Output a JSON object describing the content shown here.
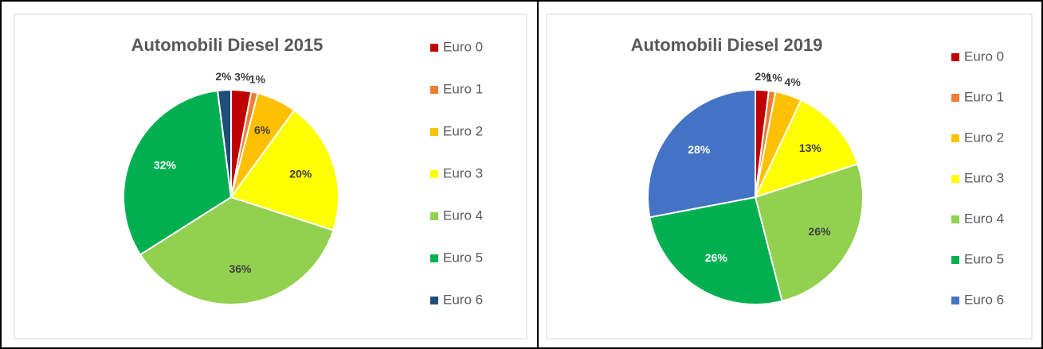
{
  "chart_data": [
    {
      "type": "pie",
      "title": "Automobili Diesel 2015",
      "categories": [
        "Euro 0",
        "Euro 1",
        "Euro 2",
        "Euro 3",
        "Euro 4",
        "Euro 5",
        "Euro 6"
      ],
      "values": [
        3,
        1,
        6,
        20,
        36,
        32,
        2
      ],
      "value_labels": [
        "3%",
        "1%",
        "6%",
        "20%",
        "36%",
        "32%",
        "2%"
      ],
      "colors": [
        "#c00000",
        "#ed7d31",
        "#ffc000",
        "#ffff00",
        "#92d050",
        "#00b050",
        "#1f4e79"
      ],
      "legend": "right"
    },
    {
      "type": "pie",
      "title": "Automobili Diesel 2019",
      "categories": [
        "Euro 0",
        "Euro 1",
        "Euro 2",
        "Euro 3",
        "Euro 4",
        "Euro 5",
        "Euro 6"
      ],
      "values": [
        2,
        1,
        4,
        13,
        26,
        26,
        28
      ],
      "value_labels": [
        "2%",
        "1%",
        "4%",
        "13%",
        "26%",
        "26%",
        "28%"
      ],
      "colors": [
        "#c00000",
        "#ed7d31",
        "#ffc000",
        "#ffff00",
        "#92d050",
        "#00b050",
        "#4472c4"
      ],
      "legend": "right"
    }
  ]
}
